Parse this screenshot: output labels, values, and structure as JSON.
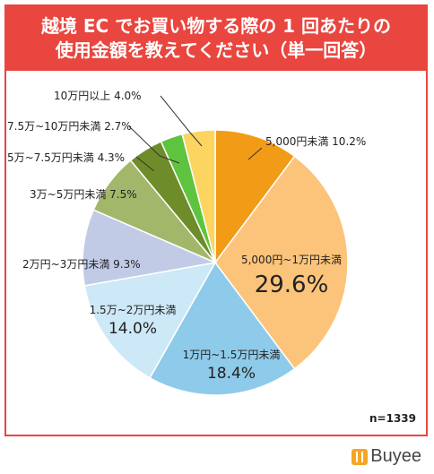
{
  "title": {
    "line1": "越境 EC でお買い物する際の 1 回あたりの",
    "line2": "使用金額を教えてください（単一回答）"
  },
  "sample_size": "n=1339",
  "brand": "Buyee",
  "colors": {
    "title_bg": "#e8463f",
    "border": "#e8463f"
  },
  "chart_data": {
    "type": "pie",
    "title": "越境 EC でお買い物する際の 1 回あたりの使用金額を教えてください（単一回答）",
    "slices": [
      {
        "label": "5,000円未満",
        "value": 10.2,
        "value_text": "10.2%",
        "color": "#f29b16"
      },
      {
        "label": "5,000円~1万円未満",
        "value": 29.6,
        "value_text": "29.6%",
        "color": "#fbc47a"
      },
      {
        "label": "1万円~1.5万円未満",
        "value": 18.4,
        "value_text": "18.4%",
        "color": "#8ecae9"
      },
      {
        "label": "1.5万~2万円未満",
        "value": 14.0,
        "value_text": "14.0%",
        "color": "#cde8f6"
      },
      {
        "label": "2万円~3万円未満",
        "value": 9.3,
        "value_text": "9.3%",
        "color": "#c2cbe6"
      },
      {
        "label": "3万~5万円未満",
        "value": 7.5,
        "value_text": "7.5%",
        "color": "#a3b76a"
      },
      {
        "label": "5万~7.5万円未満",
        "value": 4.3,
        "value_text": "4.3%",
        "color": "#6f8c2a"
      },
      {
        "label": "7.5万~10万円未満",
        "value": 2.7,
        "value_text": "2.7%",
        "color": "#5ec43f"
      },
      {
        "label": "10万円以上",
        "value": 4.0,
        "value_text": "4.0%",
        "color": "#fbd560"
      }
    ]
  }
}
